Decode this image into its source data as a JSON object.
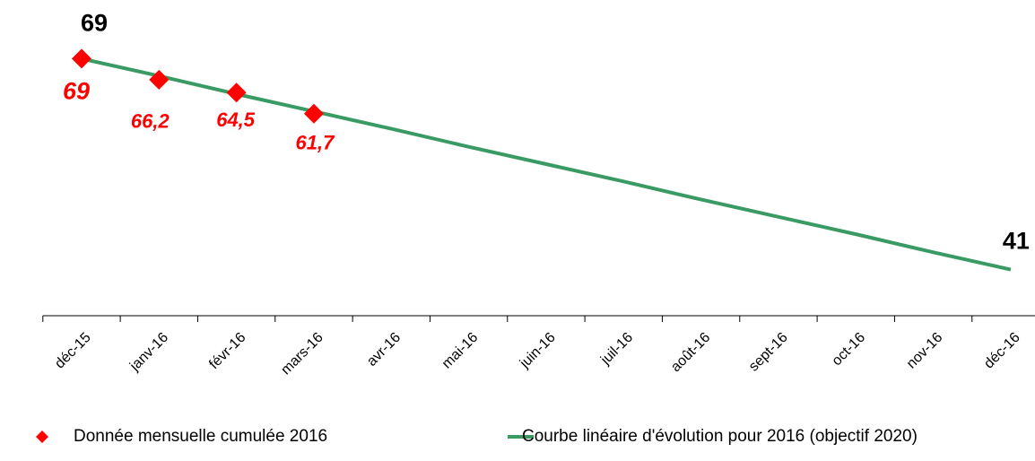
{
  "chart_data": {
    "type": "line",
    "categories": [
      "déc-15",
      "janv-16",
      "févr-16",
      "mars-16",
      "avr-16",
      "mai-16",
      "juin-16",
      "juil-16",
      "août-16",
      "sept-16",
      "oct-16",
      "nov-16",
      "déc-16"
    ],
    "series": [
      {
        "name": "Donnée mensuelle cumulée 2016",
        "color": "#ff0000",
        "marker": "diamond",
        "values": [
          69,
          66.2,
          64.5,
          61.7,
          null,
          null,
          null,
          null,
          null,
          null,
          null,
          null,
          null
        ],
        "value_labels": [
          "69",
          "66,2",
          "64,5",
          "61,7",
          null,
          null,
          null,
          null,
          null,
          null,
          null,
          null,
          null
        ]
      },
      {
        "name": "Courbe linéaire d'évolution pour 2016 (objectif 2020)",
        "color": "#3a9a63",
        "values": [
          69,
          66.7,
          64.3,
          62,
          59.7,
          57.3,
          55,
          52.7,
          50.3,
          48,
          45.7,
          43.3,
          41
        ],
        "value_labels": [
          "69",
          null,
          null,
          null,
          null,
          null,
          null,
          null,
          null,
          null,
          null,
          null,
          "41"
        ]
      }
    ],
    "ylim": [
      35,
      75
    ],
    "legend": "bottom"
  }
}
